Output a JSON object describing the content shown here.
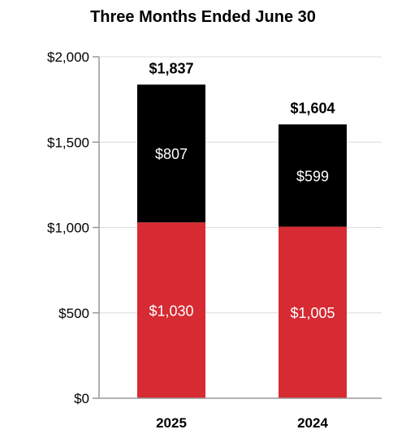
{
  "chart_data": {
    "type": "bar",
    "stacked": true,
    "title": "Three Months Ended June 30",
    "categories": [
      "2025",
      "2024"
    ],
    "series": [
      {
        "values": [
          1030,
          1005
        ],
        "labels": [
          "$1,030",
          "$1,005"
        ],
        "color": "#d62b33"
      },
      {
        "values": [
          807,
          599
        ],
        "labels": [
          "$807",
          "$599"
        ],
        "color": "#000000"
      }
    ],
    "totals": [
      1837,
      1604
    ],
    "total_labels": [
      "$1,837",
      "$1,604"
    ],
    "ylim": [
      0,
      2000
    ],
    "yticks": [
      0,
      500,
      1000,
      1500,
      2000
    ],
    "ytick_labels": [
      "$0",
      "$500",
      "$1,000",
      "$1,500",
      "$2,000"
    ],
    "grid": true
  }
}
